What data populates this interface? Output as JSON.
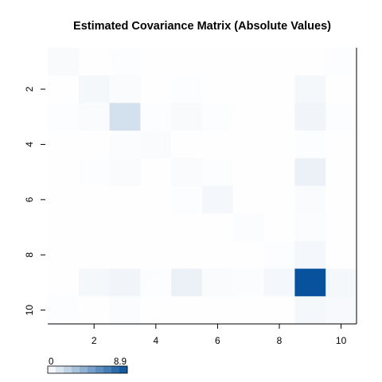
{
  "chart_data": {
    "type": "heatmap",
    "title": "Estimated Covariance Matrix (Absolute Values)",
    "xlabel": "",
    "ylabel": "",
    "x_ticks": [
      "2",
      "4",
      "6",
      "8",
      "10"
    ],
    "y_ticks": [
      "2",
      "4",
      "6",
      "8",
      "10"
    ],
    "rows": [
      "1",
      "2",
      "3",
      "4",
      "5",
      "6",
      "7",
      "8",
      "9",
      "10"
    ],
    "cols": [
      "1",
      "2",
      "3",
      "4",
      "5",
      "6",
      "7",
      "8",
      "9",
      "10"
    ],
    "values": [
      [
        0.25,
        0.05,
        0.12,
        0.05,
        0.05,
        0.05,
        0.05,
        0.05,
        0.05,
        0.12
      ],
      [
        0.05,
        0.35,
        0.2,
        0.05,
        0.1,
        0.05,
        0.05,
        0.05,
        0.35,
        0.05
      ],
      [
        0.12,
        0.18,
        1.6,
        0.12,
        0.25,
        0.12,
        0.05,
        0.05,
        0.5,
        0.12
      ],
      [
        0.05,
        0.05,
        0.15,
        0.2,
        0.05,
        0.05,
        0.05,
        0.05,
        0.1,
        0.05
      ],
      [
        0.05,
        0.1,
        0.2,
        0.05,
        0.2,
        0.12,
        0.05,
        0.05,
        0.7,
        0.05
      ],
      [
        0.05,
        0.05,
        0.05,
        0.05,
        0.1,
        0.4,
        0.05,
        0.05,
        0.2,
        0.05
      ],
      [
        0.05,
        0.05,
        0.05,
        0.05,
        0.05,
        0.05,
        0.15,
        0.05,
        0.15,
        0.05
      ],
      [
        0.05,
        0.05,
        0.05,
        0.05,
        0.05,
        0.05,
        0.05,
        0.1,
        0.4,
        0.05
      ],
      [
        0.05,
        0.35,
        0.5,
        0.12,
        0.7,
        0.2,
        0.15,
        0.4,
        8.9,
        0.35
      ],
      [
        0.12,
        0.05,
        0.15,
        0.05,
        0.05,
        0.05,
        0.05,
        0.05,
        0.35,
        0.3
      ]
    ],
    "value_range": [
      0,
      8.9
    ],
    "color_scale": [
      "#ffffff",
      "#08519c"
    ],
    "color_key": {
      "min_label": "0",
      "max_label": "8.9"
    },
    "grid": false
  }
}
